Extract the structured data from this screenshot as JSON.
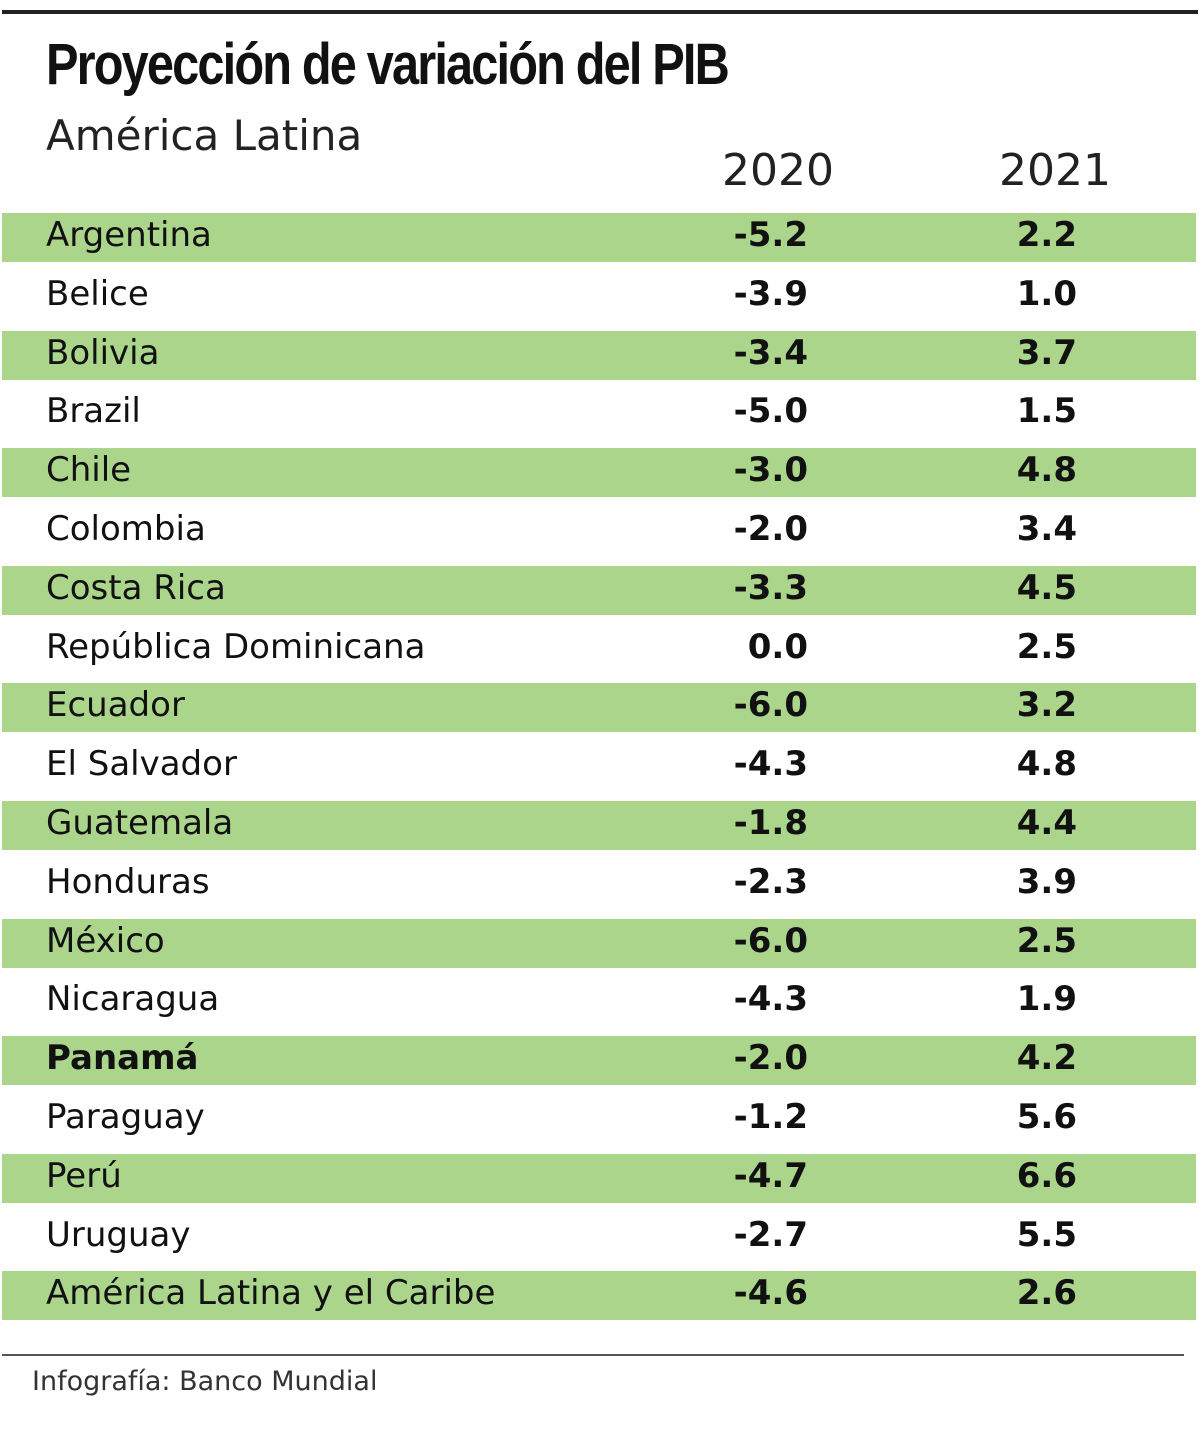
{
  "chart_data": {
    "type": "table",
    "title": "Proyección de variación del PIB",
    "subtitle": "América Latina",
    "columns": [
      "2020",
      "2021"
    ],
    "rows": [
      {
        "country": "Argentina",
        "v2020": "-5.2",
        "v2021": "2.2"
      },
      {
        "country": "Belice",
        "v2020": "-3.9",
        "v2021": "1.0"
      },
      {
        "country": "Bolivia",
        "v2020": "-3.4",
        "v2021": "3.7"
      },
      {
        "country": "Brazil",
        "v2020": "-5.0",
        "v2021": "1.5"
      },
      {
        "country": "Chile",
        "v2020": "-3.0",
        "v2021": "4.8"
      },
      {
        "country": "Colombia",
        "v2020": "-2.0",
        "v2021": "3.4"
      },
      {
        "country": "Costa Rica",
        "v2020": "-3.3",
        "v2021": "4.5"
      },
      {
        "country": "República Dominicana",
        "v2020": "0.0",
        "v2021": "2.5"
      },
      {
        "country": "Ecuador",
        "v2020": "-6.0",
        "v2021": "3.2"
      },
      {
        "country": "El Salvador",
        "v2020": "-4.3",
        "v2021": "4.8"
      },
      {
        "country": "Guatemala",
        "v2020": "-1.8",
        "v2021": "4.4"
      },
      {
        "country": "Honduras",
        "v2020": "-2.3",
        "v2021": "3.9"
      },
      {
        "country": "México",
        "v2020": "-6.0",
        "v2021": "2.5"
      },
      {
        "country": "Nicaragua",
        "v2020": "-4.3",
        "v2021": "1.9"
      },
      {
        "country": "Panamá",
        "v2020": "-2.0",
        "v2021": "4.2",
        "highlight": true
      },
      {
        "country": "Paraguay",
        "v2020": "-1.2",
        "v2021": "5.6"
      },
      {
        "country": "Perú",
        "v2020": "-4.7",
        "v2021": "6.6"
      },
      {
        "country": "Uruguay",
        "v2020": "-2.7",
        "v2021": "5.5"
      },
      {
        "country": "América Latina y el Caribe",
        "v2020": "-4.6",
        "v2021": "2.6"
      }
    ],
    "band_color": "#acd58c",
    "source": "Infografía: Banco Mundial"
  }
}
